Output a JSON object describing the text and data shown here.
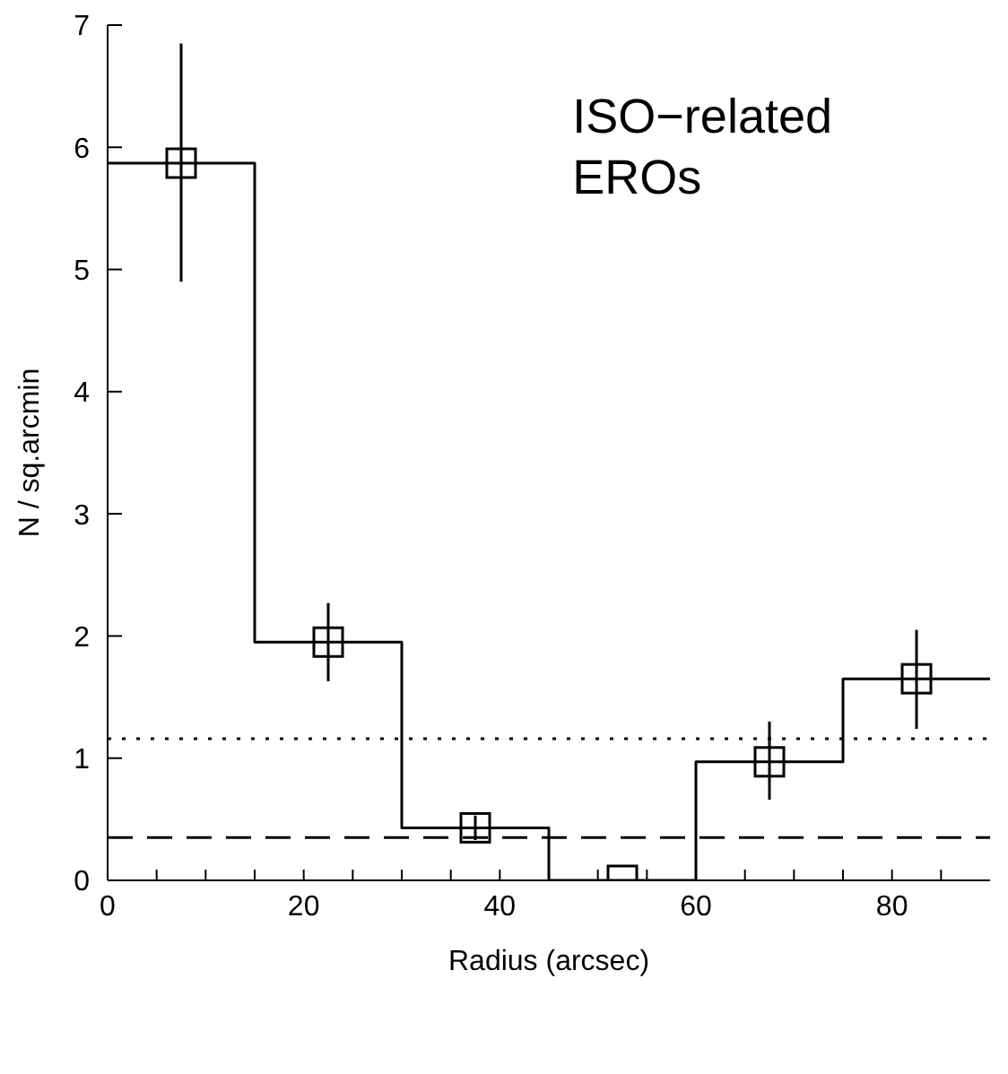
{
  "chart_data": {
    "type": "histogram",
    "xlabel": "Radius (arcsec)",
    "ylabel": "N / sq.arcmin",
    "annotations": [
      "ISO−related\nEROs"
    ],
    "bins": [
      0,
      15,
      30,
      45,
      60,
      75,
      90
    ],
    "values": [
      5.87,
      1.95,
      0.43,
      0,
      0.97,
      1.65
    ],
    "color": "#000000",
    "series": [
      {
        "type": "scatter",
        "color": "#000000",
        "marker": "square",
        "x": [
          7.5,
          22.5,
          37.5,
          52.5,
          67.5,
          82.5
        ],
        "values": [
          5.87,
          1.95,
          0.43,
          0,
          0.97,
          1.65
        ],
        "errors": [
          [
            4.9,
            6.85
          ],
          [
            1.63,
            2.27
          ],
          [
            0.33,
            0.53
          ],
          null,
          [
            0.66,
            1.3
          ],
          [
            1.24,
            2.05
          ]
        ]
      }
    ],
    "xlim": [
      0,
      90
    ],
    "xticks": [
      0,
      {
        "value": 5,
        "label": null
      },
      {
        "value": 10,
        "label": null
      },
      {
        "value": 15,
        "label": null
      },
      20,
      {
        "value": 25,
        "label": null
      },
      {
        "value": 30,
        "label": null
      },
      {
        "value": 35,
        "label": null
      },
      40,
      {
        "value": 45,
        "label": null
      },
      {
        "value": 50,
        "label": null
      },
      {
        "value": 55,
        "label": null
      },
      60,
      {
        "value": 65,
        "label": null
      },
      {
        "value": 70,
        "label": null
      },
      {
        "value": 75,
        "label": null
      },
      80,
      {
        "value": 85,
        "label": null
      }
    ],
    "ylim": [
      0,
      7
    ],
    "yticks": [
      0,
      1,
      2,
      3,
      4,
      5,
      6,
      7
    ],
    "ref_lines": [
      {
        "axis": "y",
        "value": 1.16,
        "line_style": "dotted"
      },
      {
        "axis": "y",
        "value": 0.35,
        "line_style": "dashed"
      }
    ],
    "grid": false,
    "legend": false
  }
}
